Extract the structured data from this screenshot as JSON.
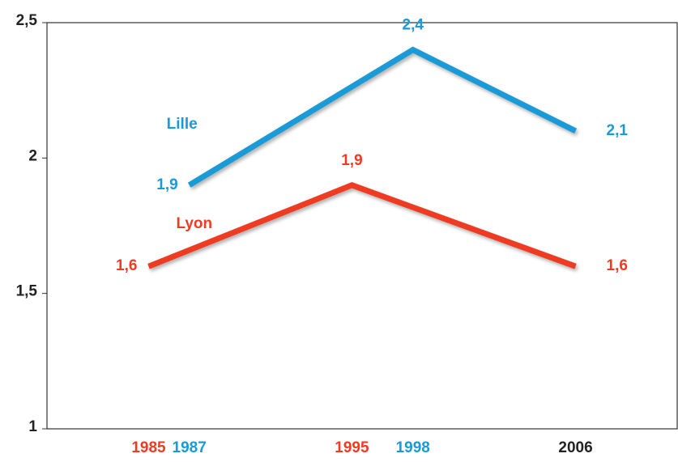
{
  "chart_data": {
    "type": "line",
    "series": [
      {
        "name": "Lyon",
        "color": "#ee3b22",
        "x": [
          1985,
          1995,
          2006
        ],
        "values": [
          1.6,
          1.9,
          1.6
        ],
        "value_labels": [
          "1,6",
          "1,9",
          "1,6"
        ]
      },
      {
        "name": "Lille",
        "color": "#1a9ad6",
        "x": [
          1987,
          1998,
          2006
        ],
        "values": [
          1.9,
          2.4,
          2.1
        ],
        "value_labels": [
          "1,9",
          "2,4",
          "2,1"
        ]
      }
    ],
    "xlim": [
      1980,
      2011
    ],
    "xticks": [
      1985,
      1987,
      1995,
      1998,
      2006
    ],
    "ylim": [
      1,
      2.5
    ],
    "yticks": [
      1,
      {
        "value": 1.5,
        "label": "1,5"
      },
      2,
      {
        "value": 2.5,
        "label": "2,5"
      }
    ],
    "grid": false
  }
}
